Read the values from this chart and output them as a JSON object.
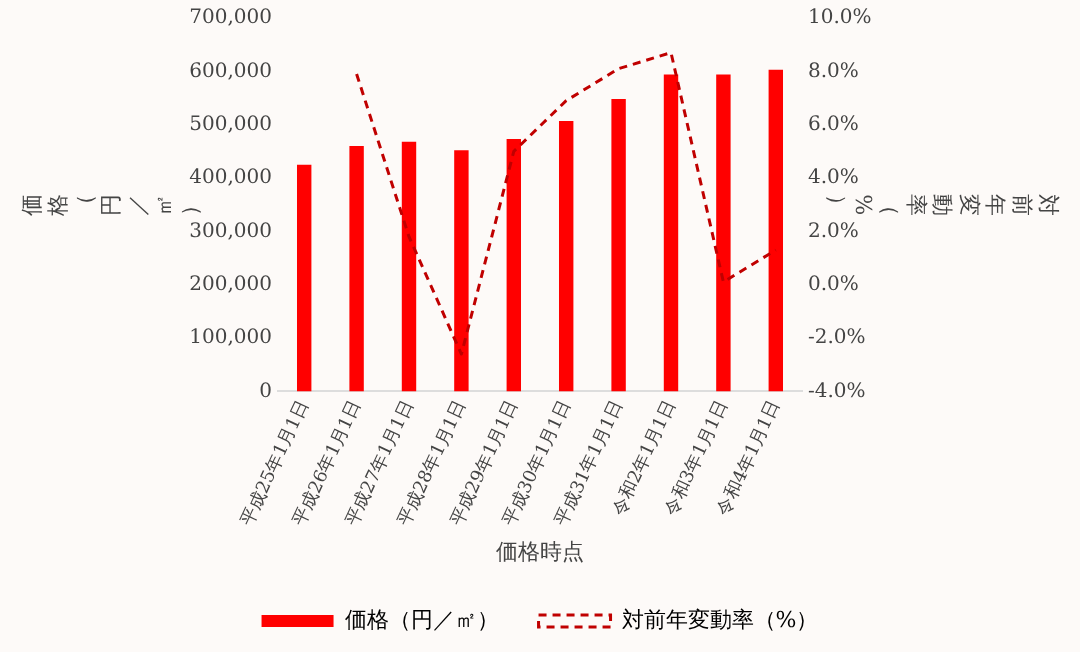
{
  "chart_data": {
    "type": "bar",
    "xlabel": "価格時点",
    "ylabel": "価格（円／㎡）",
    "y2label": "対前年変動率（%）",
    "categories": [
      "平成25年1月1日",
      "平成26年1月1日",
      "平成27年1月1日",
      "平成28年1月1日",
      "平成29年1月1日",
      "平成30年1月1日",
      "平成31年1月1日",
      "令和2年1月1日",
      "令和3年1月1日",
      "令和4年1月1日"
    ],
    "series": [
      {
        "name": "価格（円／㎡）",
        "color": "#ff0000",
        "values": [
          425000,
          460000,
          468000,
          452000,
          473000,
          507000,
          548000,
          594000,
          594000,
          603000
        ]
      },
      {
        "name": "対前年変動率（%）",
        "type": "line",
        "axis": "y2",
        "color": "#c00000",
        "line_style": "dashed",
        "marker": "none",
        "values": [
          null,
          7.9,
          1.8,
          -2.6,
          5.0,
          6.9,
          8.1,
          8.7,
          0.1,
          1.3
        ]
      }
    ],
    "ylim": [
      0,
      700000
    ],
    "yticks": [
      0,
      {
        "value": 100000,
        "label": "100,000"
      },
      {
        "value": 200000,
        "label": "200,000"
      },
      {
        "value": 300000,
        "label": "300,000"
      },
      {
        "value": 400000,
        "label": "400,000"
      },
      {
        "value": 500000,
        "label": "500,000"
      },
      {
        "value": 600000,
        "label": "600,000"
      },
      {
        "value": 700000,
        "label": "700,000"
      }
    ],
    "y2lim": [
      -4,
      10
    ],
    "y2ticks": [
      {
        "value": -4,
        "label": "-4.0%"
      },
      {
        "value": -2,
        "label": "-2.0%"
      },
      {
        "value": 0,
        "label": "0.0%"
      },
      {
        "value": 2,
        "label": "2.0%"
      },
      {
        "value": 4,
        "label": "4.0%"
      },
      {
        "value": 6,
        "label": "6.0%"
      },
      {
        "value": 8,
        "label": "8.0%"
      },
      {
        "value": 10,
        "label": "10.0%"
      }
    ],
    "grid": false,
    "legend": "bottom"
  }
}
